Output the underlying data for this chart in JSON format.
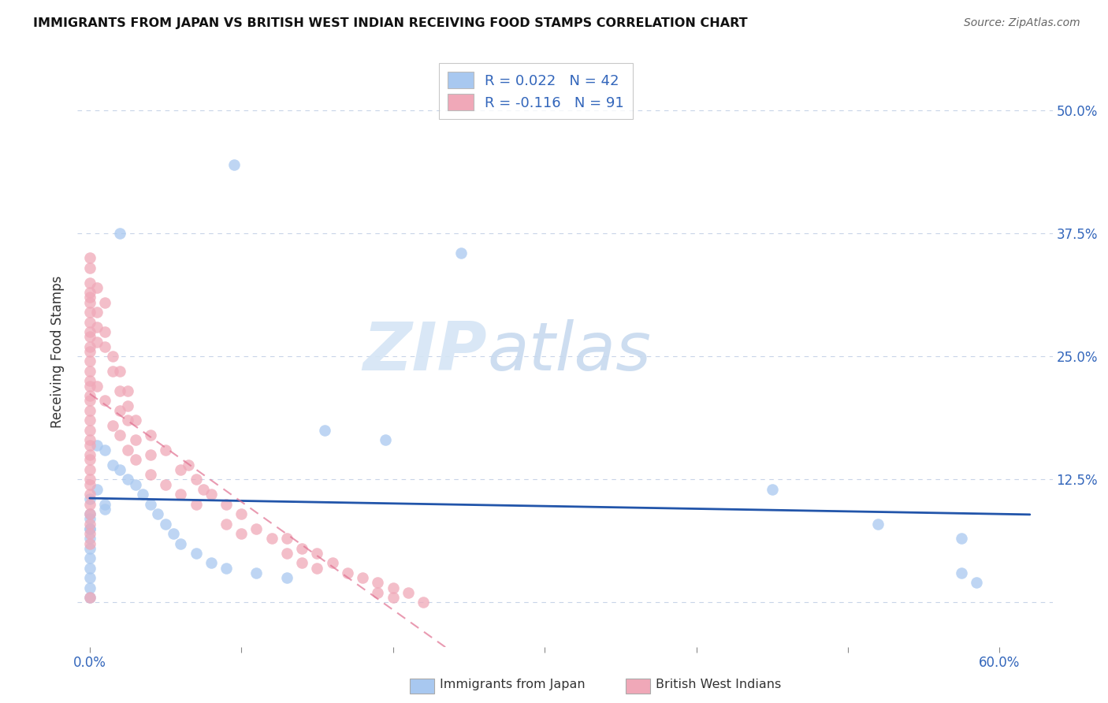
{
  "title": "IMMIGRANTS FROM JAPAN VS BRITISH WEST INDIAN RECEIVING FOOD STAMPS CORRELATION CHART",
  "source": "Source: ZipAtlas.com",
  "ylabel": "Receiving Food Stamps",
  "x_tick_positions": [
    0.0,
    0.1,
    0.2,
    0.3,
    0.4,
    0.5,
    0.6
  ],
  "x_tick_labels": [
    "0.0%",
    "",
    "",
    "",
    "",
    "",
    "60.0%"
  ],
  "y_ticks": [
    0.0,
    0.125,
    0.25,
    0.375,
    0.5
  ],
  "y_tick_labels": [
    "",
    "12.5%",
    "25.0%",
    "37.5%",
    "50.0%"
  ],
  "xlim": [
    -0.008,
    0.635
  ],
  "ylim": [
    -0.045,
    0.555
  ],
  "japan_R": 0.022,
  "japan_N": 42,
  "bwi_R": -0.116,
  "bwi_N": 91,
  "japan_color": "#a8c8f0",
  "bwi_color": "#f0a8b8",
  "japan_line_color": "#2255aa",
  "bwi_line_color": "#e07090",
  "grid_color": "#c8d4e8",
  "watermark_zip": "ZIP",
  "watermark_atlas": "atlas",
  "legend_label_japan": "Immigrants from Japan",
  "legend_label_bwi": "British West Indians",
  "japan_x": [
    0.095,
    0.02,
    0.245,
    0.155,
    0.195,
    0.0,
    0.0,
    0.0,
    0.01,
    0.01,
    0.0,
    0.0,
    0.0,
    0.0,
    0.0,
    0.0,
    0.0,
    0.0,
    0.0,
    0.005,
    0.005,
    0.01,
    0.015,
    0.02,
    0.025,
    0.03,
    0.035,
    0.04,
    0.045,
    0.05,
    0.055,
    0.06,
    0.07,
    0.08,
    0.09,
    0.11,
    0.13,
    0.45,
    0.52,
    0.575,
    0.575,
    0.585
  ],
  "japan_y": [
    0.445,
    0.375,
    0.355,
    0.175,
    0.165,
    0.105,
    0.09,
    0.075,
    0.1,
    0.095,
    0.085,
    0.075,
    0.065,
    0.055,
    0.045,
    0.035,
    0.025,
    0.015,
    0.005,
    0.115,
    0.16,
    0.155,
    0.14,
    0.135,
    0.125,
    0.12,
    0.11,
    0.1,
    0.09,
    0.08,
    0.07,
    0.06,
    0.05,
    0.04,
    0.035,
    0.03,
    0.025,
    0.115,
    0.08,
    0.03,
    0.065,
    0.02
  ],
  "bwi_x": [
    0.0,
    0.0,
    0.0,
    0.0,
    0.0,
    0.0,
    0.0,
    0.0,
    0.0,
    0.0,
    0.0,
    0.0,
    0.0,
    0.0,
    0.0,
    0.0,
    0.0,
    0.0,
    0.0,
    0.0,
    0.0,
    0.0,
    0.0,
    0.0,
    0.0,
    0.0,
    0.0,
    0.0,
    0.0,
    0.0,
    0.005,
    0.005,
    0.005,
    0.005,
    0.005,
    0.01,
    0.01,
    0.01,
    0.01,
    0.015,
    0.015,
    0.015,
    0.02,
    0.02,
    0.02,
    0.02,
    0.025,
    0.025,
    0.025,
    0.025,
    0.03,
    0.03,
    0.03,
    0.04,
    0.04,
    0.04,
    0.05,
    0.05,
    0.06,
    0.06,
    0.065,
    0.07,
    0.07,
    0.075,
    0.08,
    0.09,
    0.09,
    0.1,
    0.1,
    0.11,
    0.12,
    0.13,
    0.13,
    0.14,
    0.14,
    0.15,
    0.15,
    0.16,
    0.17,
    0.18,
    0.19,
    0.19,
    0.2,
    0.2,
    0.21,
    0.22,
    0.0,
    0.0,
    0.0,
    0.0,
    0.0
  ],
  "bwi_y": [
    0.31,
    0.305,
    0.295,
    0.285,
    0.275,
    0.27,
    0.26,
    0.255,
    0.245,
    0.235,
    0.225,
    0.22,
    0.21,
    0.205,
    0.195,
    0.185,
    0.175,
    0.165,
    0.16,
    0.15,
    0.145,
    0.135,
    0.125,
    0.12,
    0.11,
    0.1,
    0.09,
    0.08,
    0.07,
    0.06,
    0.32,
    0.295,
    0.28,
    0.265,
    0.22,
    0.305,
    0.275,
    0.26,
    0.205,
    0.25,
    0.235,
    0.18,
    0.235,
    0.215,
    0.195,
    0.17,
    0.215,
    0.2,
    0.185,
    0.155,
    0.185,
    0.165,
    0.145,
    0.17,
    0.15,
    0.13,
    0.155,
    0.12,
    0.135,
    0.11,
    0.14,
    0.125,
    0.1,
    0.115,
    0.11,
    0.1,
    0.08,
    0.09,
    0.07,
    0.075,
    0.065,
    0.065,
    0.05,
    0.055,
    0.04,
    0.05,
    0.035,
    0.04,
    0.03,
    0.025,
    0.02,
    0.01,
    0.015,
    0.005,
    0.01,
    0.0,
    0.35,
    0.34,
    0.325,
    0.315,
    0.005
  ]
}
